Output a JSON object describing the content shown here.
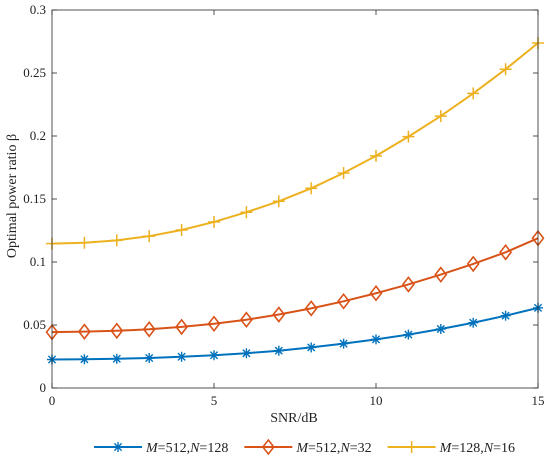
{
  "chart_data": {
    "type": "line",
    "xlabel": "SNR/dB",
    "ylabel": "Optimal power ratio β",
    "xlim": [
      0,
      15
    ],
    "ylim": [
      0,
      0.3
    ],
    "xticks": [
      "0",
      "5",
      "10",
      "15"
    ],
    "yticks": [
      "0",
      "0.05",
      "0.1",
      "0.15",
      "0.2",
      "0.25",
      "0.3"
    ],
    "grid": false,
    "legend_position": "bottom",
    "x": [
      0,
      1,
      2,
      3,
      4,
      5,
      6,
      7,
      8,
      9,
      10,
      11,
      12,
      13,
      14,
      15
    ],
    "series": [
      {
        "name": "M=512,N=128",
        "name_parts": [
          "M",
          "=512,",
          "N",
          "=128"
        ],
        "color": "#0072BD",
        "marker": "asterisk",
        "values": [
          0.0226,
          0.0228,
          0.0232,
          0.0238,
          0.0248,
          0.026,
          0.0276,
          0.0296,
          0.0322,
          0.0352,
          0.0386,
          0.0424,
          0.0468,
          0.0518,
          0.0574,
          0.0636
        ]
      },
      {
        "name": "M=512,N=32",
        "name_parts": [
          "M",
          "=512,",
          "N",
          "=32"
        ],
        "color": "#D95319",
        "marker": "diamond",
        "values": [
          0.0443,
          0.0447,
          0.0454,
          0.0466,
          0.0485,
          0.051,
          0.0542,
          0.0583,
          0.0632,
          0.0688,
          0.0752,
          0.0822,
          0.09,
          0.0985,
          0.1077,
          0.1189
        ]
      },
      {
        "name": "M=128,N=16",
        "name_parts": [
          "M",
          "=128,",
          "N",
          "=16"
        ],
        "color": "#EDB120",
        "marker": "plus",
        "values": [
          0.1146,
          0.1153,
          0.1172,
          0.1205,
          0.1254,
          0.1318,
          0.1395,
          0.1482,
          0.1585,
          0.1706,
          0.1842,
          0.1995,
          0.2158,
          0.2338,
          0.253,
          0.2738
        ]
      }
    ]
  }
}
